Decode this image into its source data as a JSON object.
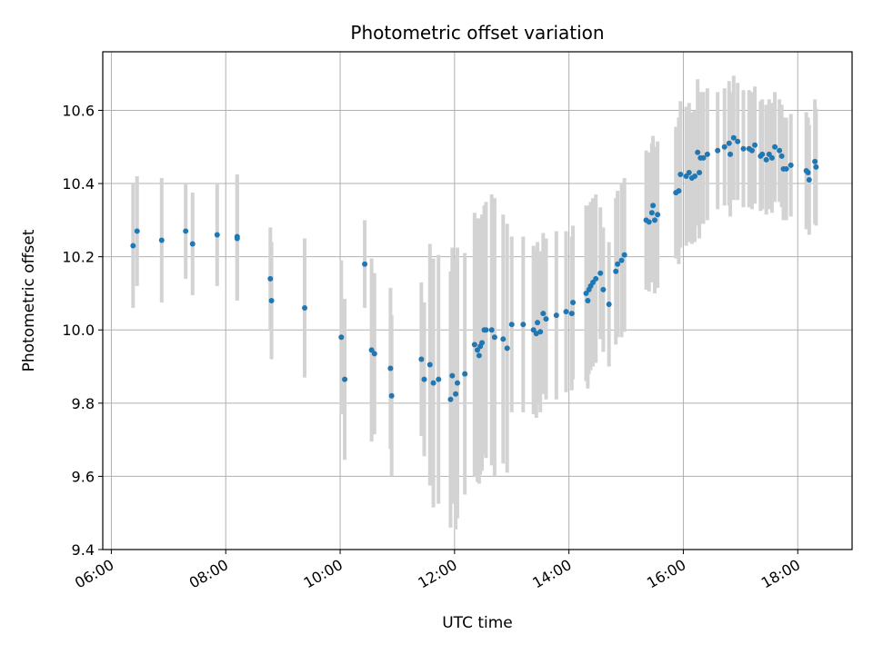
{
  "chart_data": {
    "type": "scatter",
    "title": "Photometric offset variation",
    "xlabel": "UTC time",
    "ylabel": "Photometric offset",
    "x_unit": "hours UTC",
    "xlim": [
      5.85,
      18.95
    ],
    "ylim": [
      9.4,
      10.76
    ],
    "x_ticks": [
      6,
      8,
      10,
      12,
      14,
      16,
      18
    ],
    "x_tick_labels": [
      "06:00",
      "08:00",
      "10:00",
      "12:00",
      "14:00",
      "16:00",
      "18:00"
    ],
    "y_ticks": [
      9.4,
      9.6,
      9.8,
      10.0,
      10.2,
      10.4,
      10.6
    ],
    "y_tick_labels": [
      "9.4",
      "9.6",
      "9.8",
      "10.0",
      "10.2",
      "10.4",
      "10.6"
    ],
    "grid": true,
    "legend": "none",
    "colors": {
      "points": "#1f77b4",
      "errorbars": "#d3d3d3",
      "grid": "#b0b0b0"
    },
    "series": [
      {
        "x": [
          6.38,
          6.45,
          6.88,
          7.3,
          7.42,
          7.85,
          8.2,
          8.2,
          8.78,
          8.8,
          9.38,
          10.02,
          10.08,
          10.43,
          10.55,
          10.6,
          10.88,
          10.9,
          11.42,
          11.47,
          11.57,
          11.63,
          11.72,
          11.93,
          11.96,
          12.02,
          12.05,
          12.18,
          12.35,
          12.4,
          12.43,
          12.45,
          12.48,
          12.52,
          12.55,
          12.65,
          12.7,
          12.85,
          12.92,
          13.0,
          13.2,
          13.38,
          13.43,
          13.45,
          13.5,
          13.55,
          13.6,
          13.78,
          13.95,
          14.05,
          14.07,
          14.3,
          14.33,
          14.35,
          14.38,
          14.42,
          14.47,
          14.55,
          14.6,
          14.7,
          14.82,
          14.85,
          14.92,
          14.97,
          15.35,
          15.4,
          15.45,
          15.47,
          15.5,
          15.55,
          15.87,
          15.92,
          15.95,
          16.05,
          16.1,
          16.15,
          16.2,
          16.25,
          16.28,
          16.3,
          16.35,
          16.42,
          16.6,
          16.72,
          16.8,
          16.82,
          16.88,
          16.95,
          17.05,
          17.15,
          17.2,
          17.25,
          17.35,
          17.38,
          17.45,
          17.5,
          17.55,
          17.6,
          17.68,
          17.72,
          17.75,
          17.8,
          17.88,
          18.15,
          18.18,
          18.2,
          18.3,
          18.32
        ],
        "y": [
          10.23,
          10.27,
          10.245,
          10.27,
          10.235,
          10.26,
          10.255,
          10.25,
          10.14,
          10.08,
          10.06,
          9.98,
          9.865,
          10.18,
          9.945,
          9.935,
          9.895,
          9.82,
          9.92,
          9.865,
          9.905,
          9.855,
          9.865,
          9.81,
          9.875,
          9.825,
          9.855,
          9.88,
          9.96,
          9.945,
          9.93,
          9.955,
          9.965,
          10.0,
          10.0,
          10.0,
          9.98,
          9.975,
          9.95,
          10.015,
          10.015,
          10.0,
          9.99,
          10.02,
          9.995,
          10.045,
          10.03,
          10.04,
          10.05,
          10.045,
          10.075,
          10.1,
          10.08,
          10.11,
          10.12,
          10.13,
          10.14,
          10.155,
          10.11,
          10.07,
          10.16,
          10.18,
          10.19,
          10.205,
          10.3,
          10.295,
          10.32,
          10.34,
          10.3,
          10.315,
          10.375,
          10.38,
          10.425,
          10.42,
          10.43,
          10.415,
          10.42,
          10.485,
          10.43,
          10.47,
          10.47,
          10.48,
          10.49,
          10.5,
          10.51,
          10.48,
          10.525,
          10.515,
          10.495,
          10.495,
          10.49,
          10.505,
          10.475,
          10.48,
          10.465,
          10.48,
          10.47,
          10.5,
          10.49,
          10.475,
          10.44,
          10.44,
          10.45,
          10.435,
          10.43,
          10.41,
          10.46,
          10.445
        ],
        "yerr": [
          0.17,
          0.15,
          0.17,
          0.13,
          0.14,
          0.14,
          0.17,
          0.17,
          0.14,
          0.16,
          0.19,
          0.21,
          0.22,
          0.12,
          0.25,
          0.22,
          0.22,
          0.22,
          0.21,
          0.21,
          0.33,
          0.34,
          0.34,
          0.35,
          0.35,
          0.37,
          0.37,
          0.33,
          0.36,
          0.36,
          0.35,
          0.35,
          0.35,
          0.34,
          0.35,
          0.37,
          0.38,
          0.34,
          0.34,
          0.24,
          0.24,
          0.23,
          0.23,
          0.22,
          0.22,
          0.22,
          0.22,
          0.23,
          0.22,
          0.21,
          0.21,
          0.24,
          0.24,
          0.23,
          0.23,
          0.23,
          0.23,
          0.18,
          0.17,
          0.17,
          0.2,
          0.2,
          0.21,
          0.21,
          0.19,
          0.19,
          0.19,
          0.19,
          0.2,
          0.2,
          0.18,
          0.2,
          0.2,
          0.19,
          0.19,
          0.18,
          0.18,
          0.2,
          0.18,
          0.18,
          0.18,
          0.18,
          0.16,
          0.16,
          0.17,
          0.17,
          0.17,
          0.16,
          0.16,
          0.16,
          0.16,
          0.16,
          0.15,
          0.15,
          0.15,
          0.15,
          0.15,
          0.15,
          0.14,
          0.14,
          0.14,
          0.14,
          0.14,
          0.16,
          0.15,
          0.15,
          0.17,
          0.16
        ]
      }
    ]
  }
}
